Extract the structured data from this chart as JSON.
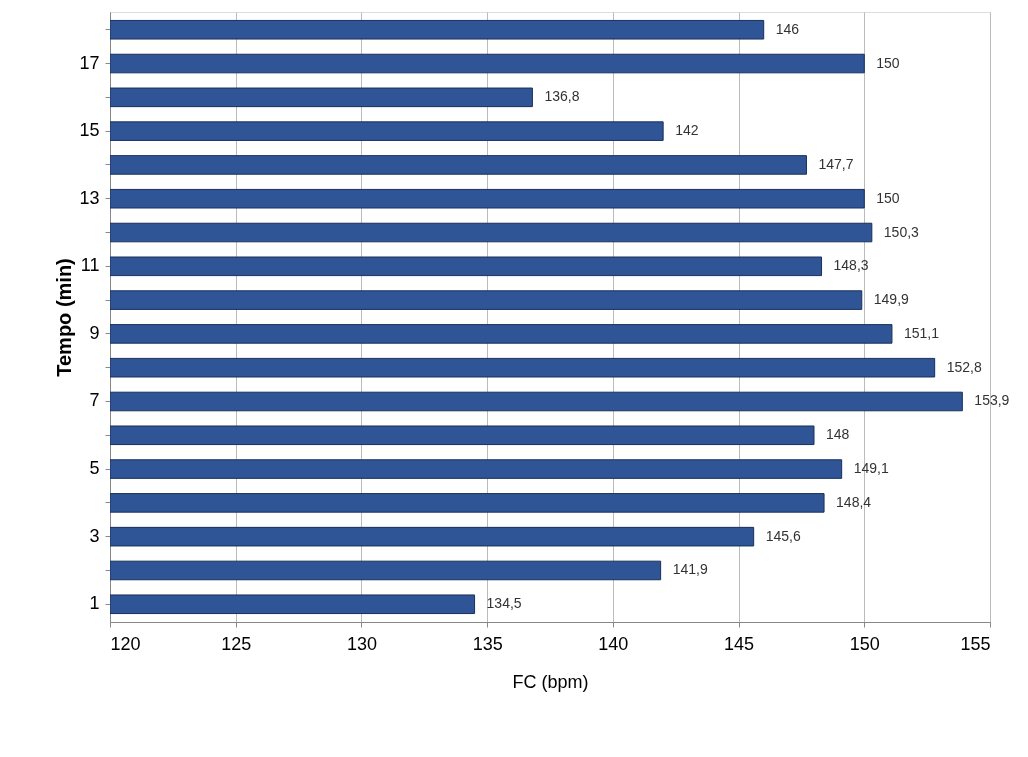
{
  "chart_data": {
    "type": "bar",
    "orientation": "horizontal",
    "xlabel": "FC (bpm)",
    "ylabel": "Tempo (min)",
    "categories": [
      null,
      "17",
      null,
      "15",
      null,
      "13",
      null,
      "11",
      null,
      "9",
      null,
      "7",
      null,
      "5",
      null,
      "3",
      null,
      "1"
    ],
    "values": [
      146,
      150,
      136.8,
      142,
      147.7,
      150,
      150.3,
      148.3,
      149.9,
      151.1,
      152.8,
      153.9,
      148,
      149.1,
      148.4,
      145.6,
      141.9,
      134.5
    ],
    "value_labels": [
      "146",
      "150",
      "136,8",
      "142",
      "147,7",
      "150",
      "150,3",
      "148,3",
      "149,9",
      "151,1",
      "152,8",
      "153,9",
      "148",
      "149,1",
      "148,4",
      "145,6",
      "141,9",
      "134,5"
    ],
    "color": "#2f5597",
    "xlim": [
      120,
      155
    ],
    "xticks": [
      120,
      125,
      130,
      135,
      140,
      145,
      150,
      155
    ],
    "grid": "x"
  }
}
